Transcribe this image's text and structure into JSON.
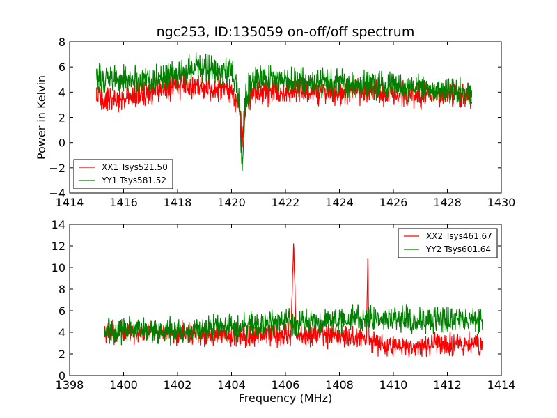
{
  "chart_data": [
    {
      "type": "line",
      "title": "ngc253, ID:135059 on-off/off spectrum",
      "xlabel": "",
      "ylabel": "Power in Kelvin",
      "xlim": [
        1414,
        1430
      ],
      "ylim": [
        -4,
        8
      ],
      "xticks": [
        "1414",
        "1416",
        "1418",
        "1420",
        "1422",
        "1424",
        "1426",
        "1428",
        "1430"
      ],
      "yticks": [
        "−4",
        "−2",
        "0",
        "2",
        "4",
        "6",
        "8"
      ],
      "grid": false,
      "legend_position": "lower-left",
      "series": [
        {
          "name": "XX1 Tsys521.50",
          "color": "#ff0000",
          "x": [
            1415.0,
            1415.5,
            1416.0,
            1416.5,
            1417.0,
            1417.5,
            1418.0,
            1418.5,
            1419.0,
            1419.5,
            1420.0,
            1420.2,
            1420.3,
            1420.4,
            1420.5,
            1420.7,
            1421.0,
            1421.5,
            1422.0,
            1422.5,
            1423.0,
            1423.5,
            1424.0,
            1424.5,
            1425.0,
            1425.5,
            1426.0,
            1426.5,
            1427.0,
            1427.5,
            1428.0,
            1428.5,
            1428.9
          ],
          "y": [
            3.6,
            3.4,
            3.5,
            3.9,
            4.1,
            4.3,
            4.5,
            4.6,
            4.5,
            4.3,
            4.2,
            3.4,
            2.6,
            0.2,
            2.8,
            3.8,
            4.1,
            4.0,
            4.0,
            4.1,
            4.0,
            4.1,
            4.0,
            4.0,
            4.1,
            4.0,
            3.9,
            3.8,
            3.8,
            3.8,
            3.9,
            3.8,
            3.7
          ],
          "noise": 0.7
        },
        {
          "name": "YY1 Tsys581.52",
          "color": "#008000",
          "x": [
            1415.0,
            1415.5,
            1416.0,
            1416.5,
            1417.0,
            1417.5,
            1418.0,
            1418.5,
            1419.0,
            1419.5,
            1420.0,
            1420.2,
            1420.3,
            1420.4,
            1420.5,
            1420.7,
            1421.0,
            1421.5,
            1422.0,
            1422.5,
            1423.0,
            1423.5,
            1424.0,
            1424.5,
            1425.0,
            1425.5,
            1426.0,
            1426.5,
            1427.0,
            1427.5,
            1428.0,
            1428.5,
            1428.9
          ],
          "y": [
            5.0,
            5.2,
            5.1,
            5.0,
            5.1,
            5.1,
            5.4,
            5.9,
            5.8,
            5.6,
            5.5,
            4.6,
            3.0,
            -2.2,
            3.2,
            4.8,
            5.0,
            5.0,
            4.9,
            4.9,
            4.8,
            4.7,
            4.7,
            4.6,
            4.6,
            4.5,
            4.5,
            4.4,
            4.4,
            4.3,
            4.2,
            4.1,
            4.0
          ],
          "noise": 0.75
        }
      ]
    },
    {
      "type": "line",
      "title": "",
      "xlabel": "Frequency (MHz)",
      "ylabel": "",
      "xlim": [
        1398,
        1414
      ],
      "ylim": [
        0,
        14
      ],
      "xticks": [
        "1398",
        "1400",
        "1402",
        "1404",
        "1406",
        "1408",
        "1410",
        "1412",
        "1414"
      ],
      "yticks": [
        "0",
        "2",
        "4",
        "6",
        "8",
        "10",
        "12",
        "14"
      ],
      "grid": false,
      "legend_position": "upper-right",
      "series": [
        {
          "name": "XX2 Tsys461.67",
          "color": "#ff0000",
          "x": [
            1399.3,
            1400.0,
            1401.0,
            1402.0,
            1403.0,
            1404.0,
            1405.0,
            1406.0,
            1406.2,
            1406.3,
            1406.4,
            1407.0,
            1408.0,
            1409.0,
            1409.05,
            1409.1,
            1409.2,
            1409.5,
            1410.0,
            1410.5,
            1411.0,
            1412.0,
            1412.9,
            1413.3
          ],
          "y": [
            3.9,
            4.1,
            4.0,
            3.9,
            3.8,
            3.7,
            3.7,
            3.8,
            3.8,
            12.2,
            3.8,
            3.8,
            3.6,
            3.4,
            10.8,
            3.3,
            3.1,
            2.8,
            2.6,
            2.6,
            2.8,
            2.9,
            2.9,
            2.9
          ],
          "noise": 0.7
        },
        {
          "name": "YY2 Tsys601.64",
          "color": "#008000",
          "x": [
            1399.3,
            1400.0,
            1401.0,
            1402.0,
            1403.0,
            1404.0,
            1405.0,
            1406.0,
            1407.0,
            1408.0,
            1409.0,
            1410.0,
            1411.0,
            1412.0,
            1413.3
          ],
          "y": [
            4.1,
            4.2,
            4.2,
            4.0,
            4.3,
            4.5,
            4.8,
            5.0,
            5.0,
            5.1,
            5.3,
            5.3,
            5.2,
            5.2,
            5.0
          ],
          "noise": 0.8
        }
      ]
    }
  ]
}
